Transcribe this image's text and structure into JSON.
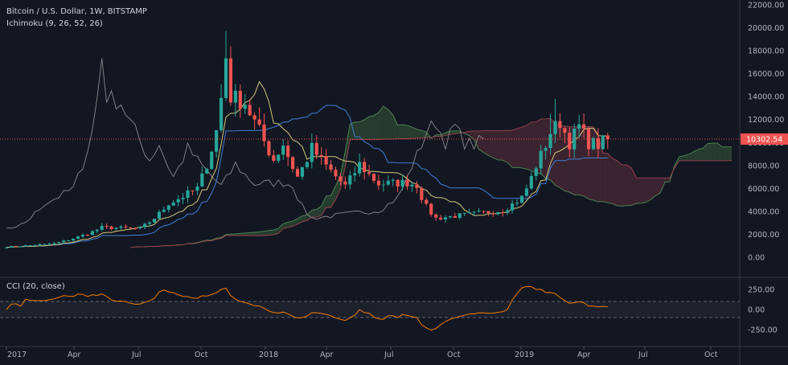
{
  "chart_data": [
    {
      "type": "candlestick",
      "title": "Bitcoin / U.S. Dollar, 1W, BITSTAMP",
      "indicator": "Ichimoku (9, 26, 52, 26)",
      "last_price_label": "10302.54",
      "last_price": 10302.54,
      "y_ticks": [
        "22000.00",
        "20000.00",
        "18000.00",
        "16000.00",
        "14000.00",
        "12000.00",
        "10000.00",
        "8000.00",
        "6000.00",
        "4000.00",
        "2000.00",
        "0.00"
      ],
      "ylim": [
        0,
        22000
      ],
      "x_ticks": [
        "2017",
        "Apr",
        "Jul",
        "Oct",
        "2018",
        "Apr",
        "Jul",
        "Oct",
        "2019",
        "Apr",
        "Jul",
        "Oct"
      ],
      "colors": {
        "up": "#26a69a",
        "down": "#ef5350",
        "tenkan": "#d4c97a",
        "kijun": "#3f7fd6",
        "lagging": "#8a8a8a",
        "cloud_bull": "#2e4a34",
        "cloud_bear": "#4a2a35",
        "price_line": "#ef5350"
      },
      "key_points": [
        {
          "t": 0,
          "p": 900
        },
        {
          "t": 10,
          "p": 1200
        },
        {
          "t": 20,
          "p": 2600
        },
        {
          "t": 28,
          "p": 2500
        },
        {
          "t": 34,
          "p": 4700
        },
        {
          "t": 40,
          "p": 6000
        },
        {
          "t": 44,
          "p": 11000
        },
        {
          "t": 46,
          "p": 17500
        },
        {
          "t": 47,
          "p": 14000
        },
        {
          "t": 50,
          "p": 13500
        },
        {
          "t": 53,
          "p": 11000
        },
        {
          "t": 56,
          "p": 8500
        },
        {
          "t": 58,
          "p": 9900
        },
        {
          "t": 61,
          "p": 7000
        },
        {
          "t": 64,
          "p": 9500
        },
        {
          "t": 68,
          "p": 7500
        },
        {
          "t": 71,
          "p": 6200
        },
        {
          "t": 74,
          "p": 8100
        },
        {
          "t": 78,
          "p": 6400
        },
        {
          "t": 84,
          "p": 6500
        },
        {
          "t": 86,
          "p": 6300
        },
        {
          "t": 88,
          "p": 4400
        },
        {
          "t": 90,
          "p": 3400
        },
        {
          "t": 100,
          "p": 3900
        },
        {
          "t": 104,
          "p": 4100
        },
        {
          "t": 108,
          "p": 5200
        },
        {
          "t": 111,
          "p": 8000
        },
        {
          "t": 114,
          "p": 10900
        },
        {
          "t": 116,
          "p": 11800
        },
        {
          "t": 118,
          "p": 10000
        },
        {
          "t": 120,
          "p": 11400
        },
        {
          "t": 122,
          "p": 10000
        },
        {
          "t": 124,
          "p": 9800
        },
        {
          "t": 126,
          "p": 10300
        }
      ]
    },
    {
      "type": "line",
      "title": "CCI (20, close)",
      "y_ticks": [
        "250.00",
        "0.00",
        "-250.00"
      ],
      "ylim": [
        -380,
        340
      ],
      "bands": [
        100,
        -100
      ]
    }
  ]
}
